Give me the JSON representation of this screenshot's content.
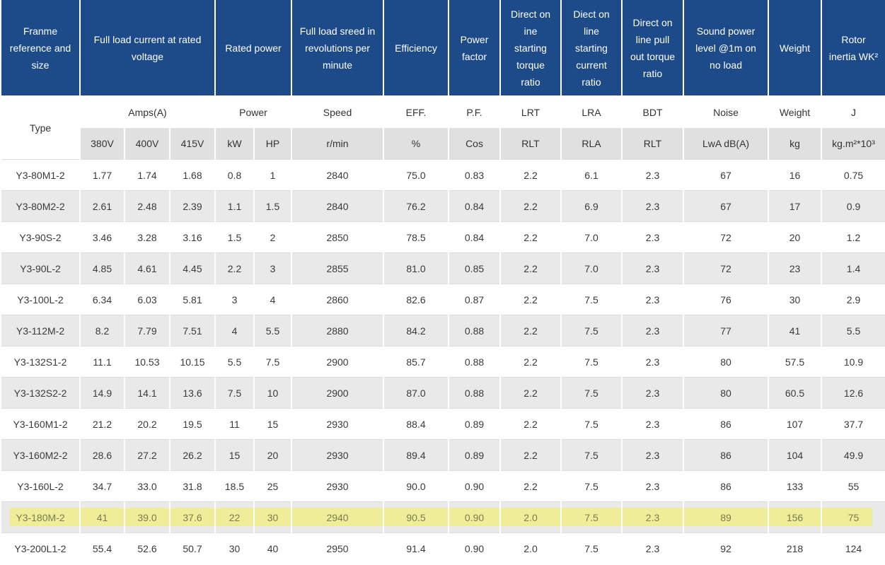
{
  "colors": {
    "header_blue": "#1d4a88",
    "header_text": "#ffffff",
    "units_row_bg": "#e0e0e0",
    "stripe_bg": "#e9e9e9",
    "grid_line": "#dcdcdc",
    "highlight_yellow": "#f0ed98",
    "highlight_text": "#7b7b52",
    "body_text": "#3a3a3a"
  },
  "table": {
    "header_row_main": [
      {
        "label": "Franme reference and size",
        "colspan": 1
      },
      {
        "label": "Full load current at rated voltage",
        "colspan": 3
      },
      {
        "label": "Rated power",
        "colspan": 2
      },
      {
        "label": "Full load sreed in revolutions per minute",
        "colspan": 1
      },
      {
        "label": "Efficiency",
        "colspan": 1
      },
      {
        "label": "Power factor",
        "colspan": 1
      },
      {
        "label": "Direct on ine starting torque ratio",
        "colspan": 1
      },
      {
        "label": "Diect on line starting current ratio",
        "colspan": 1
      },
      {
        "label": "Direct on line pull out torque ratio",
        "colspan": 1
      },
      {
        "label": "Sound power level @1m on no load",
        "colspan": 1
      },
      {
        "label": "Weight",
        "colspan": 1
      },
      {
        "label": "Rotor inertia WK²",
        "colspan": 1
      }
    ],
    "header_row_sub": [
      {
        "label": "Type",
        "rowspan": 2,
        "type_cell": true
      },
      {
        "label": "Amps(A)",
        "colspan": 3
      },
      {
        "label": "Power",
        "colspan": 2
      },
      {
        "label": "Speed"
      },
      {
        "label": "EFF."
      },
      {
        "label": "P.F."
      },
      {
        "label": "LRT"
      },
      {
        "label": "LRA"
      },
      {
        "label": "BDT"
      },
      {
        "label": "Noise"
      },
      {
        "label": "Weight"
      },
      {
        "label": "J"
      }
    ],
    "header_row_units": [
      "380V",
      "400V",
      "415V",
      "kW",
      "HP",
      "r/min",
      "%",
      "Cos",
      "RLT",
      "RLA",
      "RLT",
      "LwA dB(A)",
      "kg",
      "kg.m²*10³"
    ],
    "highlight_type": "Y3-180M-2",
    "rows": [
      [
        "Y3-80M1-2",
        "1.77",
        "1.74",
        "1.68",
        "0.8",
        "1",
        "2840",
        "75.0",
        "0.83",
        "2.2",
        "6.1",
        "2.3",
        "67",
        "16",
        "0.75"
      ],
      [
        "Y3-80M2-2",
        "2.61",
        "2.48",
        "2.39",
        "1.1",
        "1.5",
        "2840",
        "76.2",
        "0.84",
        "2.2",
        "6.9",
        "2.3",
        "67",
        "17",
        "0.9"
      ],
      [
        "Y3-90S-2",
        "3.46",
        "3.28",
        "3.16",
        "1.5",
        "2",
        "2850",
        "78.5",
        "0.84",
        "2.2",
        "7.0",
        "2.3",
        "72",
        "20",
        "1.2"
      ],
      [
        "Y3-90L-2",
        "4.85",
        "4.61",
        "4.45",
        "2.2",
        "3",
        "2855",
        "81.0",
        "0.85",
        "2.2",
        "7.0",
        "2.3",
        "72",
        "23",
        "1.4"
      ],
      [
        "Y3-100L-2",
        "6.34",
        "6.03",
        "5.81",
        "3",
        "4",
        "2860",
        "82.6",
        "0.87",
        "2.2",
        "7.5",
        "2.3",
        "76",
        "30",
        "2.9"
      ],
      [
        "Y3-112M-2",
        "8.2",
        "7.79",
        "7.51",
        "4",
        "5.5",
        "2880",
        "84.2",
        "0.88",
        "2.2",
        "7.5",
        "2.3",
        "77",
        "41",
        "5.5"
      ],
      [
        "Y3-132S1-2",
        "11.1",
        "10.53",
        "10.15",
        "5.5",
        "7.5",
        "2900",
        "85.7",
        "0.88",
        "2.2",
        "7.5",
        "2.3",
        "80",
        "57.5",
        "10.9"
      ],
      [
        "Y3-132S2-2",
        "14.9",
        "14.1",
        "13.6",
        "7.5",
        "10",
        "2900",
        "87.0",
        "0.88",
        "2.2",
        "7.5",
        "2.3",
        "80",
        "60.5",
        "12.6"
      ],
      [
        "Y3-160M1-2",
        "21.2",
        "20.2",
        "19.5",
        "11",
        "15",
        "2930",
        "88.4",
        "0.89",
        "2.2",
        "7.5",
        "2.3",
        "86",
        "107",
        "37.7"
      ],
      [
        "Y3-160M2-2",
        "28.6",
        "27.2",
        "26.2",
        "15",
        "20",
        "2930",
        "89.4",
        "0.89",
        "2.2",
        "7.5",
        "2.3",
        "86",
        "104",
        "49.9"
      ],
      [
        "Y3-160L-2",
        "34.7",
        "33.0",
        "31.8",
        "18.5",
        "25",
        "2930",
        "90.0",
        "0.90",
        "2.2",
        "7.5",
        "2.3",
        "86",
        "133",
        "55"
      ],
      [
        "Y3-180M-2",
        "41",
        "39.0",
        "37.6",
        "22",
        "30",
        "2940",
        "90.5",
        "0.90",
        "2.0",
        "7.5",
        "2.3",
        "89",
        "156",
        "75"
      ],
      [
        "Y3-200L1-2",
        "55.4",
        "52.6",
        "50.7",
        "30",
        "40",
        "2950",
        "91.4",
        "0.90",
        "2.0",
        "7.5",
        "2.3",
        "92",
        "218",
        "124"
      ]
    ]
  }
}
